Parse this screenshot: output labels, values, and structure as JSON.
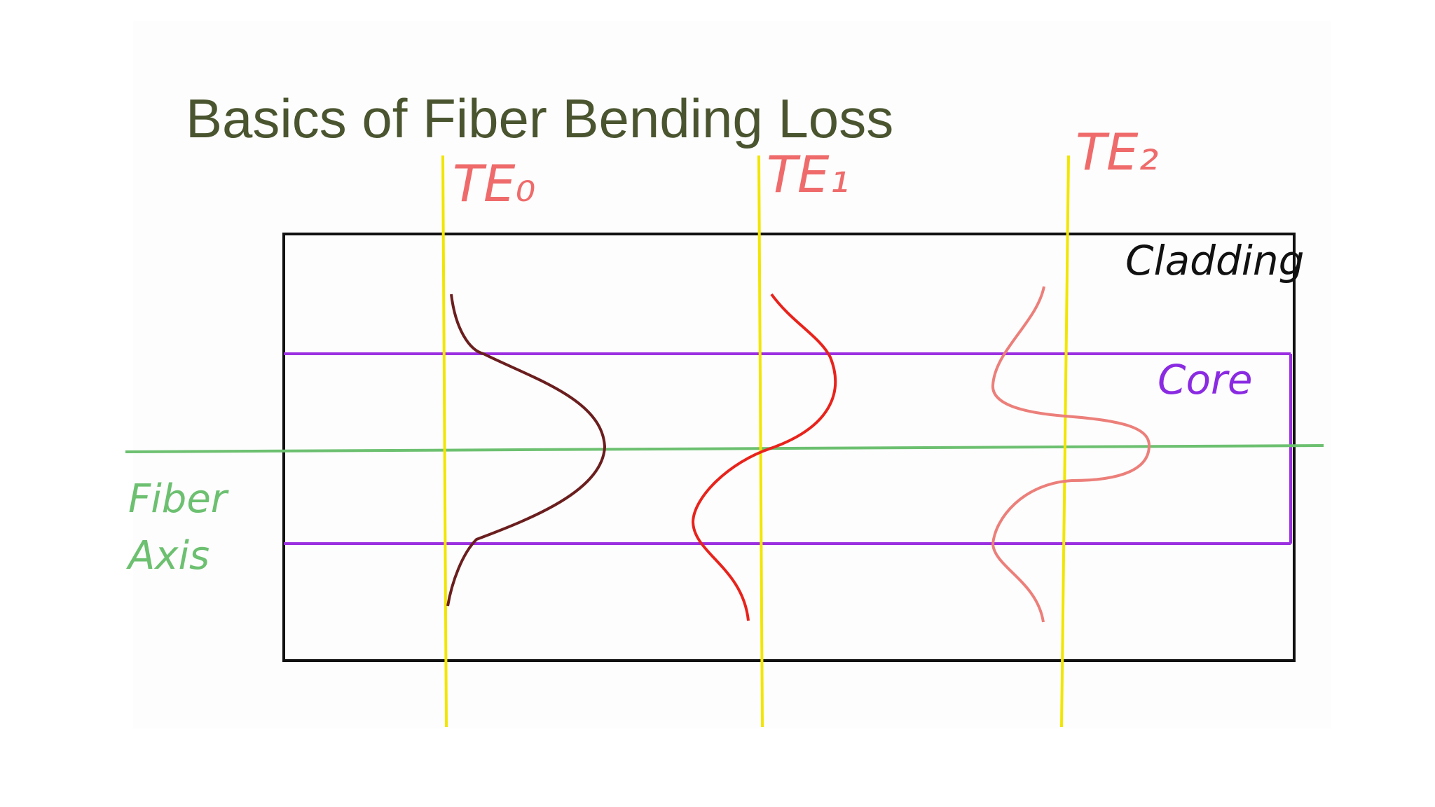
{
  "header": {
    "title": "Basics of Fiber Bending Loss"
  },
  "modes": [
    {
      "label": "TE₀"
    },
    {
      "label": "TE₁"
    },
    {
      "label": "TE₂"
    }
  ],
  "regions": {
    "cladding": "Cladding",
    "core": "Core"
  },
  "axis": {
    "lines": [
      "Fiber",
      "Axis"
    ]
  }
}
